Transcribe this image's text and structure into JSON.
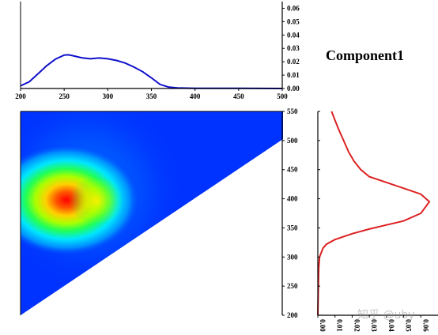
{
  "title": "Component1",
  "watermark": "知乎 @uby",
  "chart_data": [
    {
      "type": "line",
      "panel": "emission-loading",
      "x": [
        200,
        210,
        220,
        230,
        240,
        250,
        255,
        260,
        270,
        280,
        290,
        300,
        310,
        320,
        330,
        340,
        350,
        360,
        370,
        380,
        400,
        450,
        500
      ],
      "y": [
        0.002,
        0.005,
        0.011,
        0.017,
        0.022,
        0.025,
        0.0252,
        0.0245,
        0.023,
        0.0222,
        0.0228,
        0.0222,
        0.021,
        0.019,
        0.016,
        0.0125,
        0.008,
        0.003,
        0.001,
        0.0005,
        0.0002,
        0.0001,
        0
      ],
      "xlim": [
        200,
        500
      ],
      "ylim": [
        0,
        0.065
      ],
      "xticks": [
        "200",
        "250",
        "300",
        "350",
        "400",
        "450",
        "500"
      ],
      "yticks": [
        "0.00",
        "0.01",
        "0.02",
        "0.03",
        "0.04",
        "0.05",
        "0.06"
      ],
      "color": "#1010cc"
    },
    {
      "type": "heatmap",
      "panel": "eem-contour",
      "xlim": [
        200,
        500
      ],
      "ylim": [
        200,
        550
      ],
      "xticks": [
        "200",
        "250",
        "300",
        "350",
        "400",
        "450",
        "500"
      ],
      "yticks": [
        "200",
        "250",
        "300",
        "350",
        "400",
        "450",
        "500",
        "550"
      ],
      "peaks": [
        {
          "x": 252,
          "y": 398,
          "level": 1.0
        },
        {
          "x": 290,
          "y": 397,
          "level": 0.6
        }
      ],
      "colors": [
        "#0022ff",
        "#00ddff",
        "#22ff44",
        "#ffff00",
        "#ff0000"
      ]
    },
    {
      "type": "line",
      "panel": "excitation-loading",
      "x": [
        0,
        0.0005,
        0.001,
        0.003,
        0.005,
        0.01,
        0.02,
        0.03,
        0.04,
        0.05,
        0.06,
        0.065,
        0.06,
        0.05,
        0.04,
        0.03,
        0.025,
        0.021,
        0.018,
        0.015,
        0.012,
        0.01,
        0.008
      ],
      "y": [
        200,
        280,
        300,
        315,
        322,
        330,
        340,
        348,
        355,
        362,
        375,
        395,
        408,
        418,
        428,
        438,
        450,
        465,
        480,
        500,
        520,
        535,
        550
      ],
      "xlim": [
        0,
        0.07
      ],
      "ylim": [
        200,
        550
      ],
      "xticks": [
        "0.00",
        "0.01",
        "0.02",
        "0.03",
        "0.04",
        "0.05",
        "0.06"
      ],
      "color": "#dd2020"
    }
  ]
}
